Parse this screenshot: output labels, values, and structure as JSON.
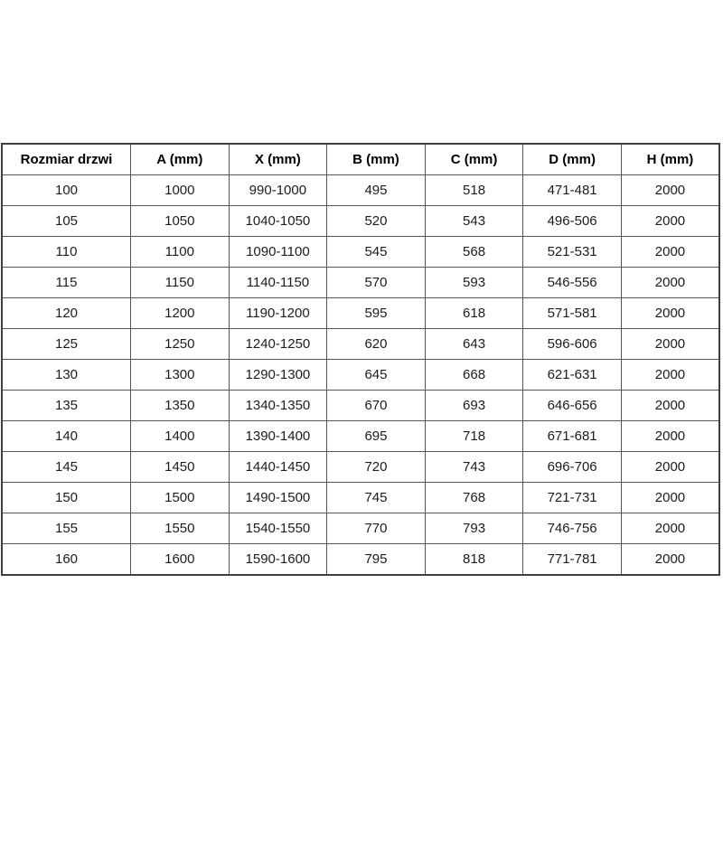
{
  "table": {
    "headers": [
      "Rozmiar drzwi",
      "A (mm)",
      "X (mm)",
      "B (mm)",
      "C (mm)",
      "D (mm)",
      "H (mm)"
    ],
    "rows": [
      [
        "100",
        "1000",
        "990-1000",
        "495",
        "518",
        "471-481",
        "2000"
      ],
      [
        "105",
        "1050",
        "1040-1050",
        "520",
        "543",
        "496-506",
        "2000"
      ],
      [
        "110",
        "1100",
        "1090-1100",
        "545",
        "568",
        "521-531",
        "2000"
      ],
      [
        "115",
        "1150",
        "1140-1150",
        "570",
        "593",
        "546-556",
        "2000"
      ],
      [
        "120",
        "1200",
        "1190-1200",
        "595",
        "618",
        "571-581",
        "2000"
      ],
      [
        "125",
        "1250",
        "1240-1250",
        "620",
        "643",
        "596-606",
        "2000"
      ],
      [
        "130",
        "1300",
        "1290-1300",
        "645",
        "668",
        "621-631",
        "2000"
      ],
      [
        "135",
        "1350",
        "1340-1350",
        "670",
        "693",
        "646-656",
        "2000"
      ],
      [
        "140",
        "1400",
        "1390-1400",
        "695",
        "718",
        "671-681",
        "2000"
      ],
      [
        "145",
        "1450",
        "1440-1450",
        "720",
        "743",
        "696-706",
        "2000"
      ],
      [
        "150",
        "1500",
        "1490-1500",
        "745",
        "768",
        "721-731",
        "2000"
      ],
      [
        "155",
        "1550",
        "1540-1550",
        "770",
        "793",
        "746-756",
        "2000"
      ],
      [
        "160",
        "1600",
        "1590-1600",
        "795",
        "818",
        "771-781",
        "2000"
      ]
    ],
    "border_color": "#555555",
    "outer_border_color": "#3f3f3f",
    "text_color": "#1c1c1c",
    "background_color": "#ffffff"
  }
}
